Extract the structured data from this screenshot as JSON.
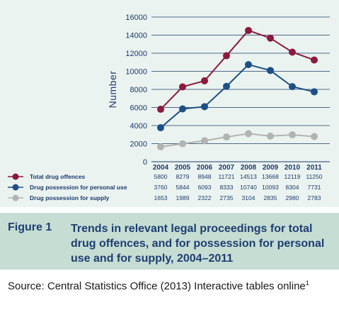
{
  "figure": {
    "label": "Figure 1",
    "caption": "Trends in relevant legal proceedings for total drug offences, and for possession for personal use and for supply, 2004–2011"
  },
  "source": {
    "text": "Source: Central Statistics Office (2013) Interactive tables online",
    "footnote": "1"
  },
  "chart_data": {
    "type": "line",
    "title": "",
    "xlabel": "",
    "ylabel": "Number",
    "ylim": [
      0,
      16000
    ],
    "yticks": [
      0,
      2000,
      4000,
      6000,
      8000,
      10000,
      12000,
      14000,
      16000
    ],
    "grid": true,
    "legend_placement": "bottom-left (data table)",
    "categories": [
      "2004",
      "2005",
      "2006",
      "2007",
      "2008",
      "2009",
      "2010",
      "2011"
    ],
    "series": [
      {
        "name": "Total drug offences",
        "color": "#8b1a3e",
        "values": [
          5800,
          8279,
          8948,
          11721,
          14513,
          13668,
          12119,
          11250
        ]
      },
      {
        "name": "Drug possession for personal use",
        "color": "#1d4f86",
        "values": [
          3760,
          5844,
          6093,
          8333,
          10740,
          10093,
          8304,
          7731
        ]
      },
      {
        "name": "Drug possession for supply",
        "color": "#b3b3b3",
        "values": [
          1653,
          1989,
          2322,
          2735,
          3104,
          2835,
          2980,
          2783
        ]
      }
    ]
  }
}
